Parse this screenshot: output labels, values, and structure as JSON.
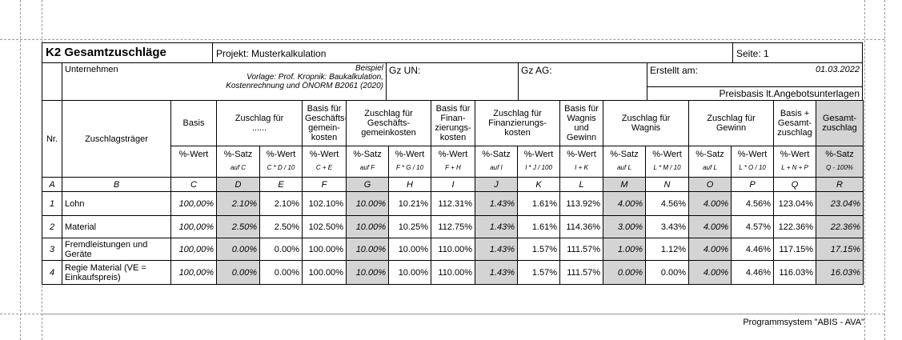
{
  "header": {
    "title": "K2 Gesamtzuschläge",
    "project": "Projekt: Musterkalkulation",
    "page": "Seite: 1",
    "company": "Unternehmen",
    "note": "Beispiel\nVorlage: Prof. Kropnik: Baukalkulation,\nKostenrechnung und ÖNORM B2061 (2020)",
    "gz_un": "Gz UN:",
    "gz_ag": "Gz AG:",
    "created_label": "Erstellt am:",
    "created_date": "01.03.2022",
    "price_basis": "Preisbasis lt.Angebotsunterlagen"
  },
  "table": {
    "nr_header": "Nr.",
    "carrier_header": "Zuschlagsträger",
    "groups": [
      "Basis",
      "Zuschlag für\n......",
      "Basis für\nGeschäfts-\ngemein-\nkosten",
      "Zuschlag für\nGeschäfts-\ngemeinkosten",
      "Basis für\nFinan-\nzierungs-\nkosten",
      "Zuschlag für\nFinanzierungs-\nkosten",
      "Basis für\nWagnis\nund\nGewinn",
      "Zuschlag für\nWagnis",
      "Zuschlag für\nGewinn",
      "Basis +\nGesamt-\nzuschlag",
      "Gesamt-\nzuschlag"
    ],
    "units": [
      "%-Wert",
      "%-Satz",
      "%-Wert",
      "%-Wert",
      "%-Satz",
      "%-Wert",
      "%-Wert",
      "%-Satz",
      "%-Wert",
      "%-Wert",
      "%-Satz",
      "%-Wert",
      "%-Satz",
      "%-Wert",
      "%-Wert",
      "%-Satz"
    ],
    "formulas": [
      null,
      "auf C",
      "C * D / 10",
      "C + E",
      "auf F",
      "F * G / 10",
      "F + H",
      "auf I",
      "I * J / 100",
      "I + K",
      "auf L",
      "L * M / 10",
      "auf L",
      "L * O / 10",
      "L + N + P",
      "Q - 100%"
    ],
    "letters": [
      "A",
      "B",
      "C",
      "D",
      "E",
      "F",
      "G",
      "H",
      "I",
      "J",
      "K",
      "L",
      "M",
      "N",
      "O",
      "P",
      "Q",
      "R"
    ],
    "rows": [
      [
        "1",
        "Lohn",
        "100,00%",
        "2.10%",
        "2.10%",
        "102.10%",
        "10.00%",
        "10.21%",
        "112.31%",
        "1.43%",
        "1.61%",
        "113.92%",
        "4.00%",
        "4.56%",
        "4.00%",
        "4.56%",
        "123.04%",
        "23.04%"
      ],
      [
        "2",
        "Material",
        "100,00%",
        "2.50%",
        "2.50%",
        "102.50%",
        "10.00%",
        "10.25%",
        "112.75%",
        "1.43%",
        "1.61%",
        "114.36%",
        "3.00%",
        "3.43%",
        "4.00%",
        "4.57%",
        "122.36%",
        "22.36%"
      ],
      [
        "3",
        "Fremdleistungen und\nGeräte",
        "100,00%",
        "0.00%",
        "0.00%",
        "100.00%",
        "10.00%",
        "10.00%",
        "110.00%",
        "1.43%",
        "1.57%",
        "111.57%",
        "1.00%",
        "1.12%",
        "4.00%",
        "4.46%",
        "117.15%",
        "17.15%"
      ],
      [
        "4",
        "Regie Material (VE =\nEinkaufspreis)",
        "100,00%",
        "0.00%",
        "0.00%",
        "100.00%",
        "10.00%",
        "10.00%",
        "110.00%",
        "1.43%",
        "1.57%",
        "111.57%",
        "0.00%",
        "0.00%",
        "4.00%",
        "4.46%",
        "116.03%",
        "16.03%"
      ]
    ]
  },
  "footer": "Programmsystem \"ABIS - AVA\""
}
